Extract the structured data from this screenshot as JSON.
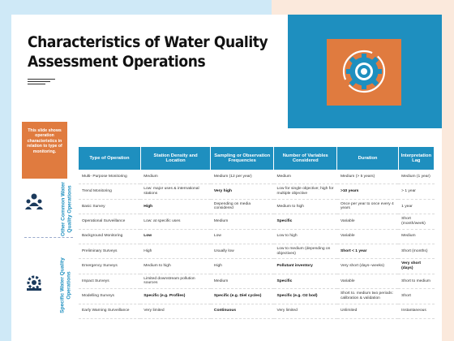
{
  "title": "Characteristics of Water Quality Assessment Operations",
  "callout": "This slide shows operation characteristics in relation to type of monitoring.",
  "sections": [
    {
      "label": "Other Common Water Quality Operations"
    },
    {
      "label": "Specific Water Quality Operations"
    }
  ],
  "table": {
    "headers": [
      "Type of Operation",
      "Station Density and Location",
      "Sampling or Observation Frequencies",
      "Number of Variables Considered",
      "Duration",
      "Interpretation Lag"
    ],
    "rows": [
      [
        "Multi- Purpose Monitoring",
        "Medium",
        "Medium (12 per year)",
        "Medium",
        "Medium (> 5 years)",
        "Medium (1 year)"
      ],
      [
        "Trend Monitoring",
        "Low: major uses & international stations",
        "Very high",
        "Low for single objective; high for multiple objective",
        ">10 years",
        "> 1 year"
      ],
      [
        "Basic Survey",
        "High",
        "Depending on media considered",
        "Medium to high",
        "Once per year to once every 4 years",
        "1 year"
      ],
      [
        "Operational Surveillance",
        "Low: at specific uses",
        "Medium",
        "Specific",
        "Variable",
        "Short (month/week)"
      ],
      [
        "Background Monitoring",
        "Low",
        "Low",
        "Low to high",
        "Variable",
        "Medium"
      ],
      [
        "Preliminary Surveys",
        "High",
        "Usually low",
        "Low to medium (depending on objectives)",
        "Short < 1 year",
        "Short (months)"
      ],
      [
        "Emergency Surveys",
        "Medium to high",
        "High",
        "Pollutant inventory",
        "Very short (days--weeks)",
        "Very short (days)"
      ],
      [
        "Impact Surveys",
        "Limited downstream pollution sources",
        "Medium",
        "Specific",
        "Variable",
        "Short to medium"
      ],
      [
        "Modelling Surveys",
        "Specific (e.g. Profiles)",
        "Specific (e.g. Diel cycles)",
        "Specific (e.g. O2 bod)",
        "Short to. medium two periods: calibration & validation",
        "Short"
      ],
      [
        "Early Warning Surveillance",
        "Very limited",
        "Continuous",
        "Very limited",
        "Unlimited",
        "Instantaneous"
      ]
    ],
    "bold_cells": [
      "1.2",
      "1.4",
      "2.1",
      "3.3",
      "4.1",
      "5.4",
      "6.3",
      "6.5",
      "7.3",
      "8.1",
      "8.2",
      "8.3",
      "9.2"
    ]
  }
}
